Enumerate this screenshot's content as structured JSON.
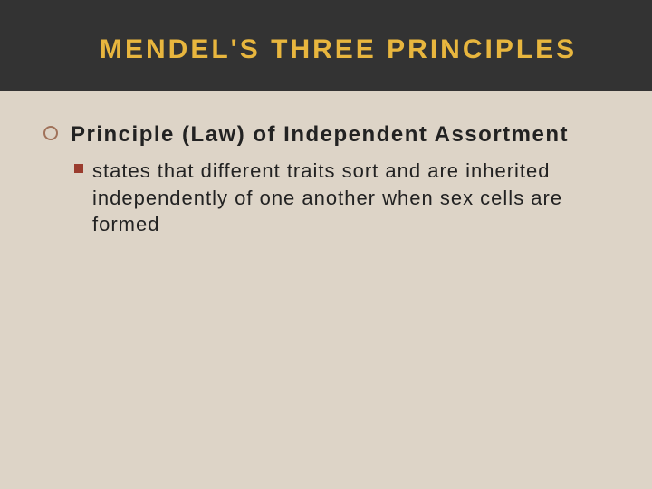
{
  "slide": {
    "type": "infographic",
    "background_color": "#ddd4c7",
    "header": {
      "band_color": "#333333",
      "title": "MENDEL'S THREE PRINCIPLES",
      "title_color": "#e8b63e",
      "title_fontsize": 30,
      "title_letterspacing": 3
    },
    "body": {
      "bullets": [
        {
          "level": 1,
          "marker": "open-circle",
          "marker_color": "#a0725a",
          "text": "Principle (Law) of Independent Assortment",
          "fontsize": 24,
          "font_weight": 700,
          "color": "#222222",
          "children": [
            {
              "level": 2,
              "marker": "filled-square",
              "marker_color": "#9a3c2e",
              "text": "states that different traits sort and  are inherited independently of one another when sex cells are formed",
              "fontsize": 22,
              "font_weight": 400,
              "color": "#222222"
            }
          ]
        }
      ]
    }
  }
}
